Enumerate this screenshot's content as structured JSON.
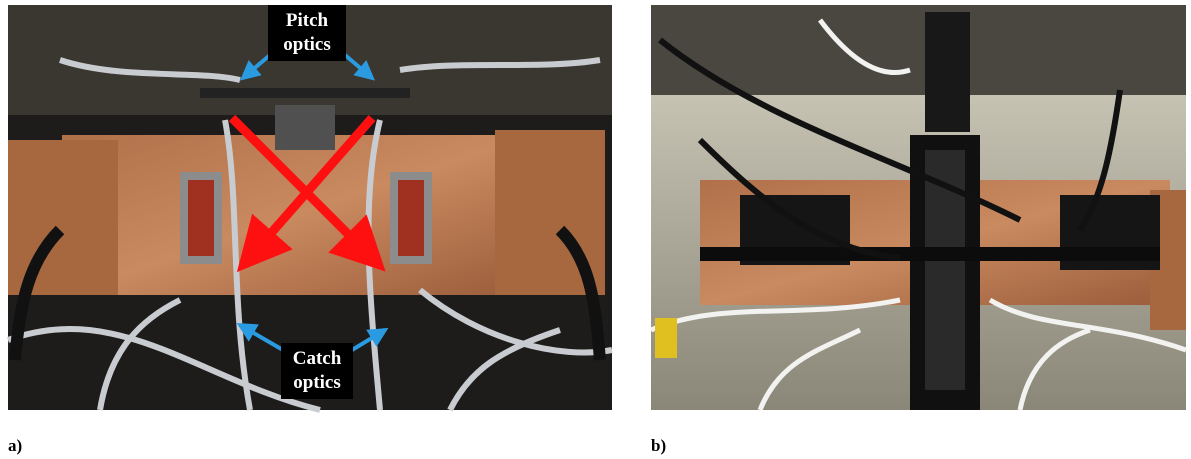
{
  "panels": [
    {
      "label": "a)",
      "annotations": {
        "pitch": "Pitch optics",
        "catch": "Catch optics"
      }
    },
    {
      "label": "b)"
    }
  ]
}
